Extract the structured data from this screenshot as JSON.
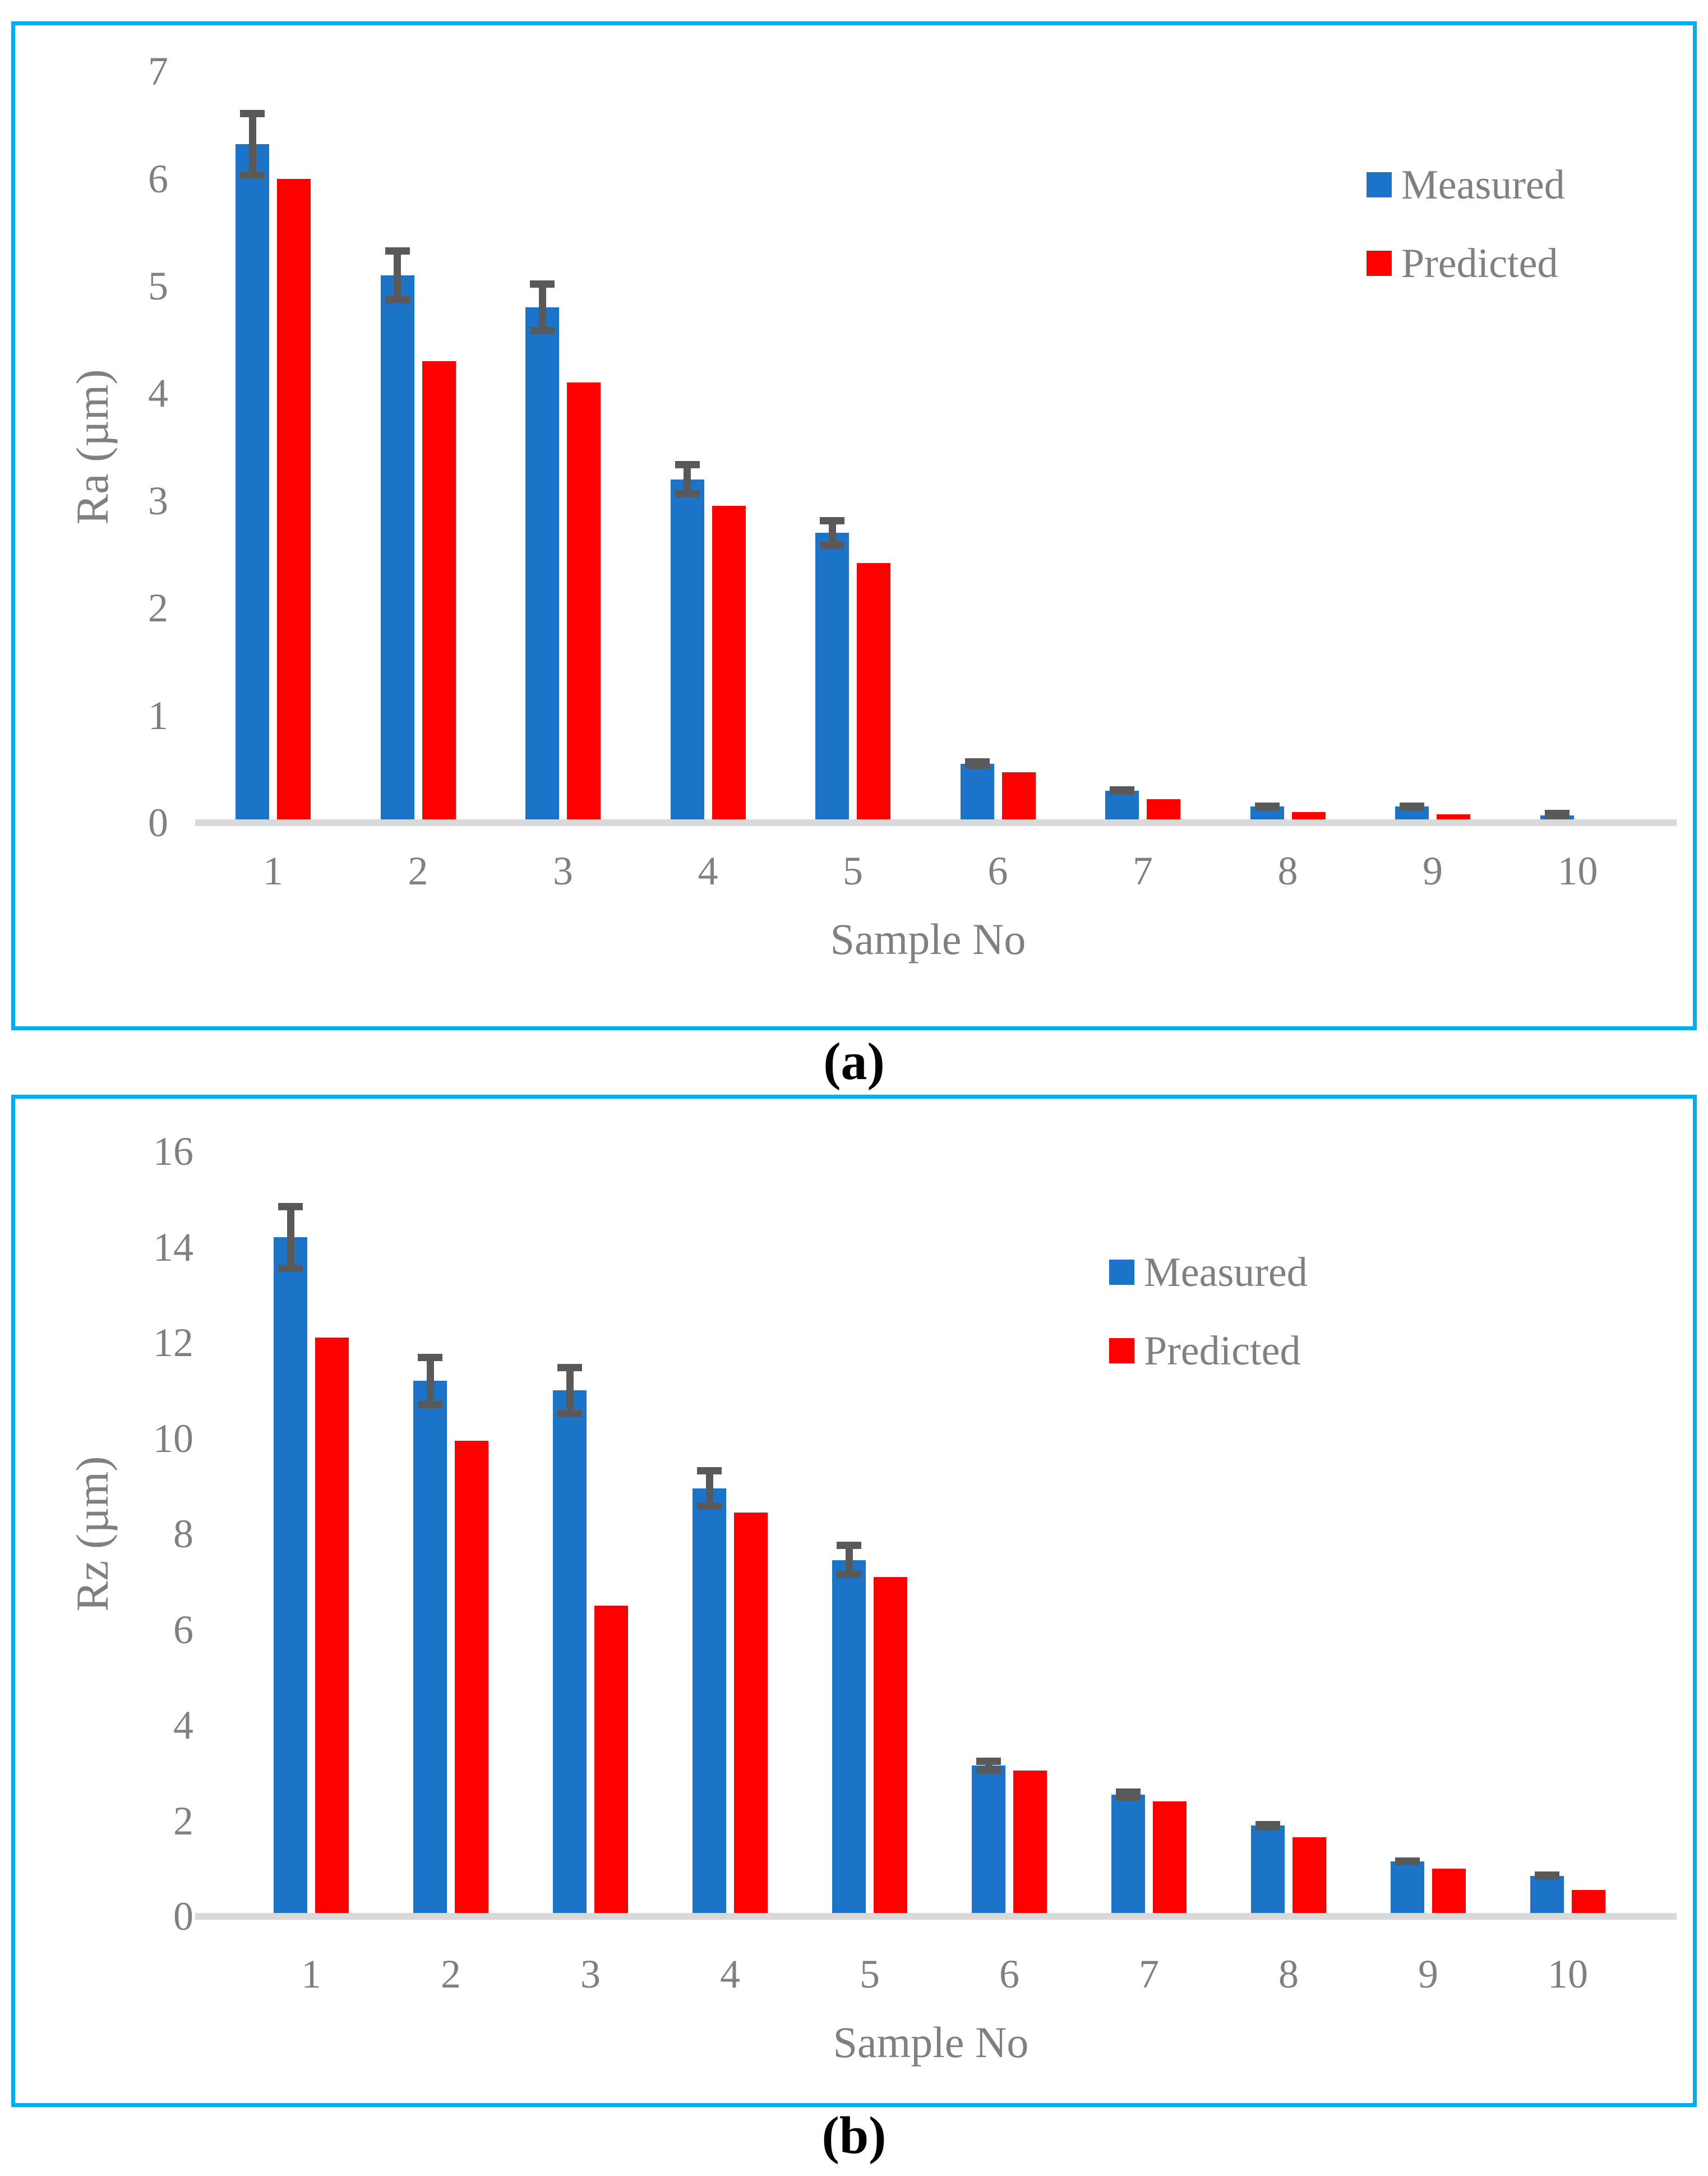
{
  "legend": {
    "measured_label": "Measured",
    "predicted_label": "Predicted"
  },
  "colors": {
    "measured_blue": "#1B74C7",
    "predicted_red": "#FE0000",
    "error_bar_gray": "#595959",
    "axis_text_gray": "#808080",
    "baseline_gray": "#D9D9D9",
    "panel_border_cyan": "#00AEEF",
    "caption_black": "#000000"
  },
  "chart_data": [
    {
      "id": "a",
      "type": "bar",
      "caption": "(a)",
      "title": "",
      "xlabel": "Sample No",
      "ylabel": "Ra (µm)",
      "ylim": [
        0,
        7
      ],
      "ytick_step": 1,
      "yticks": [
        0,
        1,
        2,
        3,
        4,
        5,
        6,
        7
      ],
      "grid": false,
      "legend_position": "inside-upper-right",
      "categories": [
        "1",
        "2",
        "3",
        "4",
        "5",
        "6",
        "7",
        "8",
        "9",
        "10"
      ],
      "series": [
        {
          "name": "Measured",
          "values": [
            6.32,
            5.1,
            4.8,
            3.2,
            2.7,
            0.55,
            0.3,
            0.15,
            0.15,
            0.07
          ],
          "errors": [
            0.32,
            0.26,
            0.25,
            0.17,
            0.15,
            0.05,
            0.04,
            0.03,
            0.03,
            0.02
          ]
        },
        {
          "name": "Predicted",
          "values": [
            6.0,
            4.3,
            4.1,
            2.95,
            2.42,
            0.47,
            0.22,
            0.1,
            0.08,
            0.03
          ],
          "errors": null
        }
      ]
    },
    {
      "id": "b",
      "type": "bar",
      "caption": "(b)",
      "title": "",
      "xlabel": "Sample No",
      "ylabel": "Rz (µm)",
      "ylim": [
        0,
        16
      ],
      "ytick_step": 2,
      "yticks": [
        0,
        2,
        4,
        6,
        8,
        10,
        12,
        14,
        16
      ],
      "grid": false,
      "legend_position": "inside-upper-right",
      "categories": [
        "1",
        "2",
        "3",
        "4",
        "5",
        "6",
        "7",
        "8",
        "9",
        "10"
      ],
      "series": [
        {
          "name": "Measured",
          "values": [
            14.2,
            11.2,
            11.0,
            8.95,
            7.45,
            3.15,
            2.55,
            1.9,
            1.15,
            0.85
          ],
          "errors": [
            0.72,
            0.57,
            0.56,
            0.45,
            0.38,
            0.17,
            0.13,
            0.1,
            0.08,
            0.06
          ]
        },
        {
          "name": "Predicted",
          "values": [
            12.1,
            9.95,
            6.5,
            8.45,
            7.1,
            3.05,
            2.4,
            1.65,
            1.0,
            0.55
          ],
          "errors": null
        }
      ]
    }
  ]
}
